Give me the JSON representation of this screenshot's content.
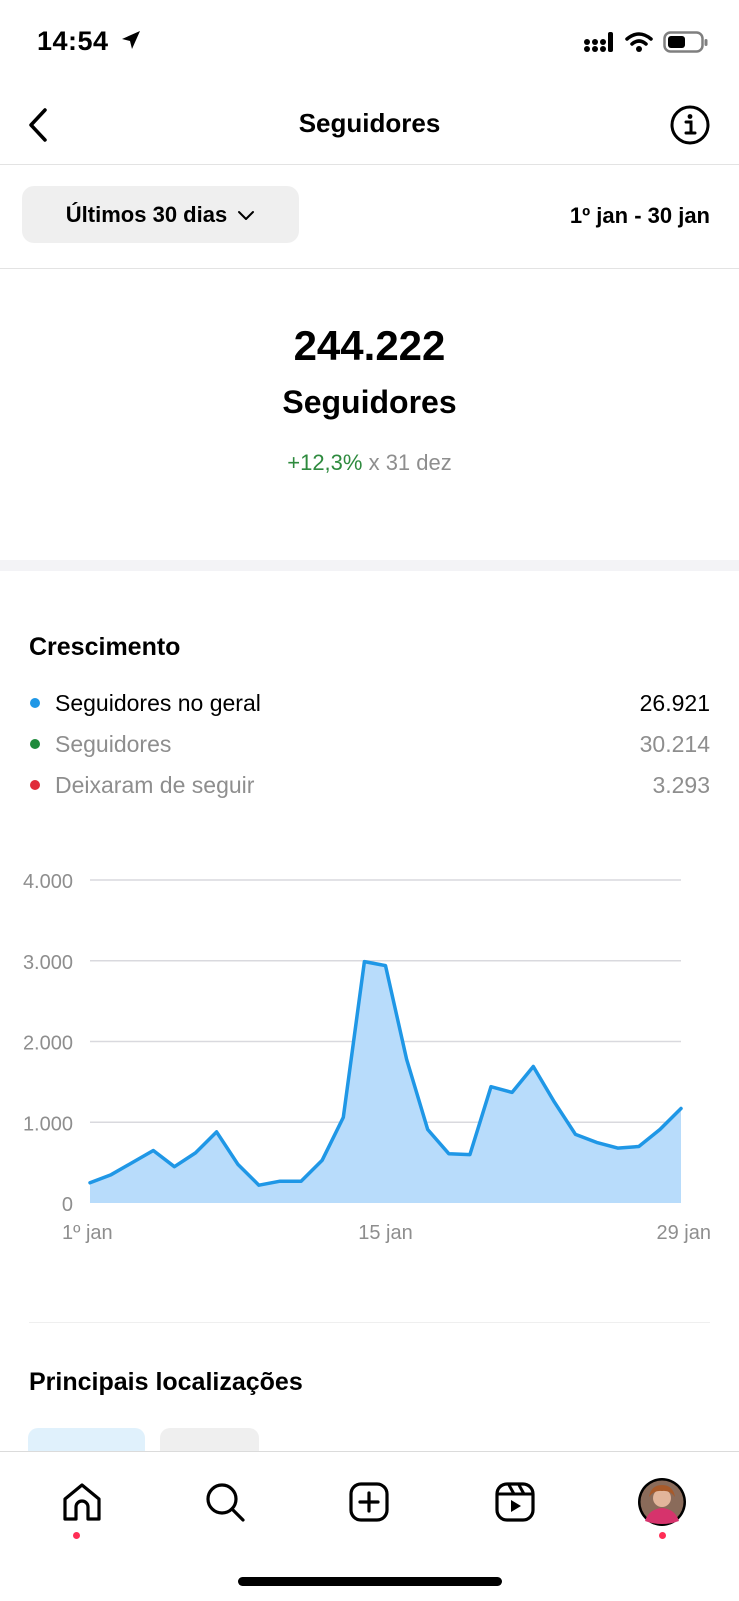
{
  "status_bar": {
    "time": "14:54",
    "icons": [
      "location-arrow-icon",
      "signal-icon",
      "wifi-icon",
      "battery-icon"
    ]
  },
  "header": {
    "title": "Seguidores",
    "back_icon": "chevron-left-icon",
    "info_icon": "info-icon"
  },
  "filter": {
    "period_label": "Últimos 30 dias",
    "date_range": "1º jan - 30 jan"
  },
  "summary": {
    "total": "244.222",
    "label": "Seguidores",
    "delta": "+12,3%",
    "delta_suffix": " x 31 dez"
  },
  "growth": {
    "title": "Crescimento",
    "legend": [
      {
        "name": "Seguidores no geral",
        "value": "26.921",
        "color": "#1f97e6"
      },
      {
        "name": "Seguidores",
        "value": "30.214",
        "color": "#1e8a3b"
      },
      {
        "name": "Deixaram de seguir",
        "value": "3.293",
        "color": "#e02a3a"
      }
    ]
  },
  "chart_data": {
    "type": "area",
    "x": [
      "1º jan",
      "2 jan",
      "3 jan",
      "4 jan",
      "5 jan",
      "6 jan",
      "7 jan",
      "8 jan",
      "9 jan",
      "10 jan",
      "11 jan",
      "12 jan",
      "13 jan",
      "14 jan",
      "15 jan",
      "16 jan",
      "17 jan",
      "18 jan",
      "19 jan",
      "20 jan",
      "21 jan",
      "22 jan",
      "23 jan",
      "24 jan",
      "25 jan",
      "26 jan",
      "27 jan",
      "28 jan",
      "29 jan"
    ],
    "series": [
      {
        "values": [
          250,
          350,
          500,
          650,
          450,
          620,
          880,
          480,
          220,
          270,
          270,
          530,
          1060,
          2990,
          2940,
          1780,
          910,
          610,
          600,
          1440,
          1370,
          1690,
          1250,
          850,
          750,
          680,
          700,
          910,
          1170
        ],
        "color": "#1f97e6",
        "fill": "#b8dcfb"
      }
    ],
    "x_tick_labels": [
      "1º jan",
      "15 jan",
      "29 jan"
    ],
    "y_tick_labels": [
      "0",
      "1.000",
      "2.000",
      "3.000",
      "4.000"
    ],
    "y_ticks": [
      0,
      1000,
      2000,
      3000,
      4000
    ],
    "ylim": [
      0,
      4000
    ],
    "grid": true
  },
  "locations": {
    "title": "Principais localizações"
  },
  "bottom_nav": {
    "items": [
      "home-icon",
      "search-icon",
      "new-post-icon",
      "reels-icon",
      "profile-avatar"
    ]
  }
}
